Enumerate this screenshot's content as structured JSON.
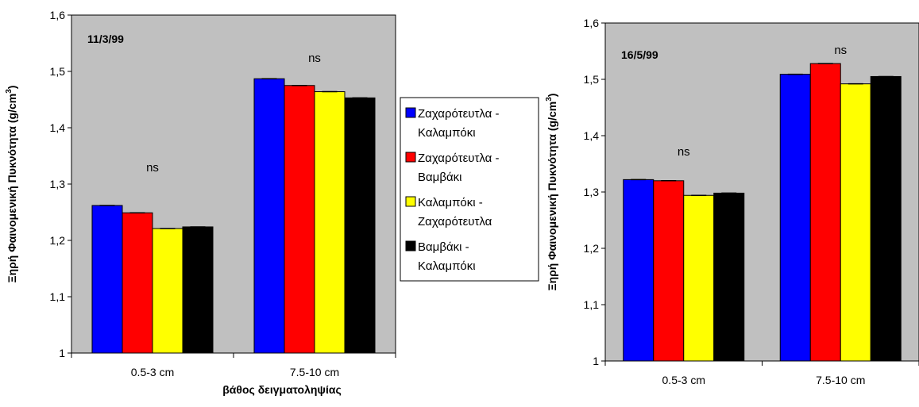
{
  "chart_data": [
    {
      "type": "bar",
      "title": "11/3/99",
      "ylabel_main": "Ξηρή Φαινομενική Πυκνότητα (g/cm",
      "ylabel_sup": "3",
      "ylabel_close": ")",
      "xlabel": "βάθος δειγματοληψίας",
      "categories": [
        "0.5-3 cm",
        "7.5-10 cm"
      ],
      "ylim": [
        1,
        1.6
      ],
      "yticks": [
        "1",
        "1,1",
        "1,2",
        "1,3",
        "1,4",
        "1,5",
        "1,6"
      ],
      "annotations": [
        "ns",
        "ns"
      ],
      "series": [
        {
          "name": "Ζαχαρότευτλα - Καλαμπόκι",
          "values": [
            1.262,
            1.487
          ]
        },
        {
          "name": "Ζαχαρότευτλα - Βαμβάκι",
          "values": [
            1.249,
            1.475
          ]
        },
        {
          "name": "Καλαμπόκι - Ζαχαρότευτλα",
          "values": [
            1.221,
            1.464
          ]
        },
        {
          "name": "Βαμβάκι - Καλαμπόκι",
          "values": [
            1.224,
            1.453
          ]
        }
      ],
      "grid": false,
      "plot_background": "#c0c0c0"
    },
    {
      "type": "bar",
      "title": "16/5/99",
      "ylabel_main": "Ξηρή Φαινομενική Πυκνότητα (g/cm",
      "ylabel_sup": "3",
      "ylabel_close": ")",
      "xlabel": "",
      "categories": [
        "0.5-3 cm",
        "7.5-10 cm"
      ],
      "ylim": [
        1,
        1.6
      ],
      "yticks": [
        "1",
        "1,1",
        "1,2",
        "1,3",
        "1,4",
        "1,5",
        "1,6"
      ],
      "annotations": [
        "ns",
        "ns"
      ],
      "series": [
        {
          "name": "Ζαχαρότευτλα - Καλαμπόκι",
          "values": [
            1.322,
            1.509
          ]
        },
        {
          "name": "Ζαχαρότευτλα - Βαμβάκι",
          "values": [
            1.32,
            1.528
          ]
        },
        {
          "name": "Καλαμπόκι - Ζαχαρότευτλα",
          "values": [
            1.294,
            1.492
          ]
        },
        {
          "name": "Βαμβάκι - Καλαμπόκι",
          "values": [
            1.298,
            1.505
          ]
        }
      ],
      "grid": false,
      "plot_background": "#c0c0c0"
    }
  ],
  "legend": {
    "placement": "center",
    "items": [
      {
        "line1": "Ζαχαρότευτλα -",
        "line2": "Καλαμπόκι",
        "color": "#0000ff"
      },
      {
        "line1": "Ζαχαρότευτλα -",
        "line2": "Βαμβάκι",
        "color": "#ff0000"
      },
      {
        "line1": "Καλαμπόκι -",
        "line2": "Ζαχαρότευτλα",
        "color": "#ffff00"
      },
      {
        "line1": "Βαμβάκι -",
        "line2": "Καλαμπόκι",
        "color": "#000000"
      }
    ]
  },
  "colors": {
    "series": [
      "#0000ff",
      "#ff0000",
      "#ffff00",
      "#000000"
    ],
    "plot_background": "#c0c0c0"
  }
}
